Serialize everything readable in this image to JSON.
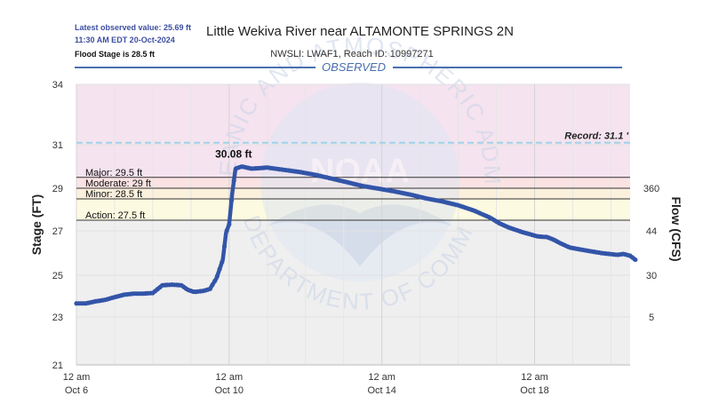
{
  "header": {
    "latest_line1": "Latest observed value: 25.69 ft",
    "latest_line2": "11:30 AM EDT 20-Oct-2024",
    "flood_stage_note": "Flood Stage is 28.5 ft",
    "title": "Little Wekiva River near ALTAMONTE SPRINGS 2N",
    "subtitle": "NWSLI: LWAF1, Reach ID: 10997271",
    "observed_label": "OBSERVED"
  },
  "watermark": {
    "outer_text": "NATIONAL OCEANIC AND ATMOSPHERIC ADMINISTRATION",
    "bottom_text": "U.S. DEPARTMENT OF COMMERCE",
    "center_text": "NOAA"
  },
  "colors": {
    "series": "#3355a8",
    "major_band": "#f5e3ef",
    "moderate_band": "#fbe3e3",
    "minor_band": "#fbf0dc",
    "action_band": "#fcfae0",
    "normal_band": "#efefef",
    "record_line": "#9fd3ea",
    "observed_bar": "#4a6fb0",
    "observed_text": "#4a6fb0",
    "latest_text": "#3d4fa0",
    "watermark": "#c8d3e8"
  },
  "chart_data": {
    "type": "line",
    "ylabel_left": "Stage (FT)",
    "ylabel_right": "Flow (CFS)",
    "ylim": [
      21,
      34
    ],
    "y_ticks": [
      21,
      23,
      25,
      27,
      29,
      31,
      34
    ],
    "right_ticks": [
      {
        "stage": 29,
        "label": "360"
      },
      {
        "stage": 27,
        "label": "44"
      },
      {
        "stage": 25,
        "label": "30"
      },
      {
        "stage": 23,
        "label": "5"
      }
    ],
    "x_ticks": [
      {
        "hour": 0,
        "line1": "12 am",
        "line2": "Oct 6"
      },
      {
        "hour": 96,
        "line1": "12 am",
        "line2": "Oct 10"
      },
      {
        "hour": 192,
        "line1": "12 am",
        "line2": "Oct 14"
      },
      {
        "hour": 288,
        "line1": "12 am",
        "line2": "Oct 18"
      }
    ],
    "xlim": [
      0,
      351.5
    ],
    "thresholds": [
      {
        "name": "Major",
        "label": "Major: 29.5 ft",
        "value": 29.5
      },
      {
        "name": "Moderate",
        "label": "Moderate: 29 ft",
        "value": 29
      },
      {
        "name": "Minor",
        "label": "Minor: 28.5 ft",
        "value": 28.5
      },
      {
        "name": "Action",
        "label": "Action: 27.5 ft",
        "value": 27.5
      }
    ],
    "record": {
      "label": "Record: 31.1 '",
      "value": 31.1
    },
    "peak": {
      "label": "30.08 ft",
      "hour": 101,
      "value": 30.08
    },
    "series": [
      {
        "hours": [
          0,
          6,
          12,
          18,
          24,
          30,
          36,
          42,
          48,
          54,
          60,
          66,
          70,
          74,
          80,
          84,
          88,
          92,
          94,
          96,
          98,
          100,
          104,
          110,
          120,
          130,
          140,
          150,
          160,
          170,
          180,
          190,
          200,
          210,
          220,
          230,
          240,
          250,
          260,
          266,
          272,
          280,
          290,
          296,
          300,
          304,
          310,
          320,
          330,
          340,
          344,
          348,
          351.5
        ],
        "values": [
          23.65,
          23.65,
          23.75,
          23.82,
          23.95,
          24.07,
          24.12,
          24.12,
          24.15,
          24.52,
          24.55,
          24.52,
          24.3,
          24.2,
          24.25,
          24.35,
          24.85,
          25.7,
          26.9,
          27.3,
          28.8,
          29.9,
          30.0,
          29.9,
          29.95,
          29.85,
          29.75,
          29.62,
          29.45,
          29.28,
          29.1,
          28.98,
          28.85,
          28.7,
          28.52,
          28.38,
          28.2,
          27.95,
          27.62,
          27.35,
          27.15,
          26.95,
          26.75,
          26.72,
          26.6,
          26.45,
          26.25,
          26.12,
          26.0,
          25.92,
          25.96,
          25.88,
          25.69
        ]
      }
    ]
  }
}
